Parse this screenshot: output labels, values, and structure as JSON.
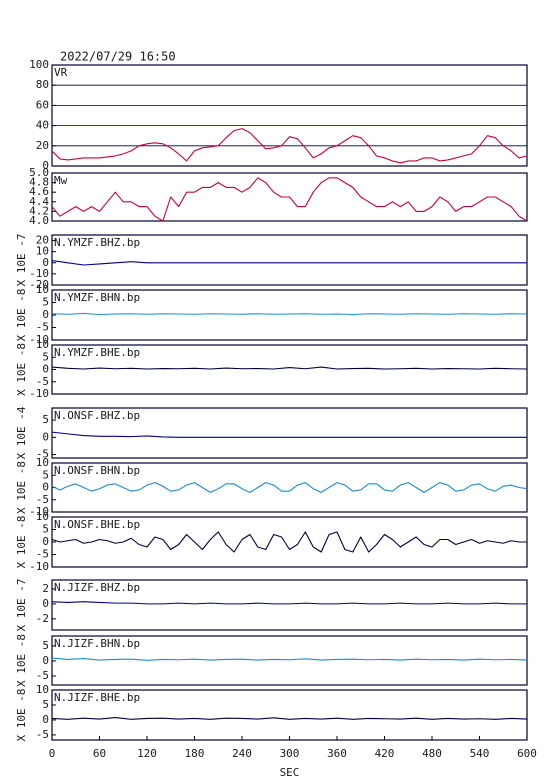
{
  "chart_data": [
    {
      "type": "line",
      "title": "2022/07/29 16:50",
      "label": "VR",
      "color": "#c8003c",
      "grid": true,
      "xlim": [
        0,
        600
      ],
      "ylim": [
        0,
        100
      ],
      "yticks": [
        0,
        20,
        40,
        60,
        80,
        100
      ],
      "x": [
        0,
        10,
        20,
        30,
        40,
        50,
        60,
        70,
        80,
        90,
        100,
        110,
        120,
        130,
        140,
        150,
        160,
        170,
        180,
        190,
        200,
        210,
        220,
        230,
        240,
        250,
        260,
        270,
        280,
        290,
        300,
        310,
        320,
        330,
        340,
        350,
        360,
        370,
        380,
        390,
        400,
        410,
        420,
        430,
        440,
        450,
        460,
        470,
        480,
        490,
        500,
        510,
        520,
        530,
        540,
        550,
        560,
        570,
        580,
        590,
        600
      ],
      "values": [
        15,
        7,
        6,
        7,
        8,
        8,
        8,
        9,
        10,
        12,
        15,
        20,
        22,
        23,
        22,
        18,
        12,
        5,
        15,
        18,
        19,
        20,
        28,
        35,
        37,
        33,
        25,
        17,
        18,
        20,
        29,
        27,
        18,
        8,
        12,
        18,
        20,
        25,
        30,
        28,
        20,
        10,
        8,
        5,
        3,
        5,
        5,
        8,
        8,
        5,
        6,
        8,
        10,
        12,
        20,
        30,
        28,
        20,
        15,
        8,
        10
      ]
    },
    {
      "type": "line",
      "label": "Mw",
      "color": "#c8003c",
      "grid": false,
      "xlim": [
        0,
        600
      ],
      "ylim": [
        4,
        5
      ],
      "yticks": [
        {
          "value": 4,
          "label": "4.0"
        },
        4.2,
        4.4,
        4.6,
        4.8,
        {
          "value": 5,
          "label": "5.0"
        }
      ],
      "x": [
        0,
        10,
        20,
        30,
        40,
        50,
        60,
        70,
        80,
        90,
        100,
        110,
        120,
        130,
        140,
        150,
        160,
        170,
        180,
        190,
        200,
        210,
        220,
        230,
        240,
        250,
        260,
        270,
        280,
        290,
        300,
        310,
        320,
        330,
        340,
        350,
        360,
        370,
        380,
        390,
        400,
        410,
        420,
        430,
        440,
        450,
        460,
        470,
        480,
        490,
        500,
        510,
        520,
        530,
        540,
        550,
        560,
        570,
        580,
        590,
        600
      ],
      "values": [
        4.3,
        4.1,
        4.2,
        4.3,
        4.2,
        4.3,
        4.2,
        4.4,
        4.6,
        4.4,
        4.4,
        4.3,
        4.3,
        4.1,
        4.0,
        4.5,
        4.3,
        4.6,
        4.6,
        4.7,
        4.7,
        4.8,
        4.7,
        4.7,
        4.6,
        4.7,
        4.9,
        4.8,
        4.6,
        4.5,
        4.5,
        4.3,
        4.3,
        4.6,
        4.8,
        4.9,
        4.9,
        4.8,
        4.7,
        4.5,
        4.4,
        4.3,
        4.3,
        4.4,
        4.3,
        4.4,
        4.2,
        4.2,
        4.3,
        4.5,
        4.4,
        4.2,
        4.3,
        4.3,
        4.4,
        4.5,
        4.5,
        4.4,
        4.3,
        4.1,
        4.0
      ]
    },
    {
      "type": "line",
      "label": "N.YMZF.BHZ.bp",
      "ylabel": "X 10E -7",
      "color": "#00008b",
      "xlim": [
        0,
        600
      ],
      "ylim": [
        -20,
        25
      ],
      "yticks": [
        -20,
        -10,
        0,
        10,
        20
      ],
      "x": [
        0,
        20,
        40,
        60,
        80,
        100,
        120,
        140,
        160,
        180,
        200,
        220,
        240,
        260,
        280,
        300,
        320,
        340,
        360,
        380,
        400,
        420,
        440,
        460,
        480,
        500,
        520,
        540,
        560,
        580,
        600
      ],
      "values": [
        2,
        0,
        -2,
        -1,
        0,
        1,
        0,
        0,
        0,
        0,
        0,
        0,
        0,
        0,
        0,
        0,
        0,
        0,
        0,
        0,
        0,
        0,
        0,
        0,
        0,
        0,
        0,
        0,
        0,
        0,
        0
      ]
    },
    {
      "type": "line",
      "label": "N.YMZF.BHN.bp",
      "ylabel": "X 10E -8",
      "color": "#1e8cd2",
      "xlim": [
        0,
        600
      ],
      "ylim": [
        -10,
        10
      ],
      "yticks": [
        -10,
        -5,
        0,
        5,
        10
      ],
      "x": [
        0,
        20,
        40,
        60,
        80,
        100,
        120,
        140,
        160,
        180,
        200,
        220,
        240,
        260,
        280,
        300,
        320,
        340,
        360,
        380,
        400,
        420,
        440,
        460,
        480,
        500,
        520,
        540,
        560,
        580,
        600
      ],
      "values": [
        0.5,
        0.3,
        0.6,
        0.2,
        0.4,
        0.5,
        0.3,
        0.5,
        0.4,
        0.3,
        0.5,
        0.4,
        0.3,
        0.5,
        0.3,
        0.4,
        0.5,
        0.3,
        0.4,
        0.2,
        0.5,
        0.4,
        0.3,
        0.5,
        0.4,
        0.3,
        0.5,
        0.4,
        0.3,
        0.5,
        0.4
      ]
    },
    {
      "type": "line",
      "label": "N.YMZF.BHE.bp",
      "ylabel": "X 10E -8",
      "color": "#000040",
      "xlim": [
        0,
        600
      ],
      "ylim": [
        -10,
        10
      ],
      "yticks": [
        -10,
        -5,
        0,
        5,
        10
      ],
      "x": [
        0,
        20,
        40,
        60,
        80,
        100,
        120,
        140,
        160,
        180,
        200,
        220,
        240,
        260,
        280,
        300,
        320,
        340,
        360,
        380,
        400,
        420,
        440,
        460,
        480,
        500,
        520,
        540,
        560,
        580,
        600
      ],
      "values": [
        1,
        0.5,
        0.2,
        0.6,
        0.3,
        0.5,
        0.2,
        0.4,
        0.3,
        0.5,
        0.2,
        0.6,
        0.3,
        0.4,
        0.2,
        0.8,
        0.3,
        1,
        0.2,
        0.4,
        0.5,
        0.2,
        0.3,
        0.5,
        0.2,
        0.4,
        0.3,
        0.2,
        0.5,
        0.3,
        0.2
      ]
    },
    {
      "type": "line",
      "label": "N.ONSF.BHZ.bp",
      "ylabel": "X 10E -4",
      "color": "#00008b",
      "xlim": [
        0,
        600
      ],
      "ylim": [
        -6,
        8.5
      ],
      "yticks": [
        -5,
        0,
        5
      ],
      "x": [
        0,
        20,
        40,
        60,
        80,
        100,
        120,
        140,
        160,
        180,
        200,
        220,
        240,
        260,
        280,
        300,
        320,
        340,
        360,
        380,
        400,
        420,
        440,
        460,
        480,
        500,
        520,
        540,
        560,
        580,
        600
      ],
      "values": [
        1.5,
        1,
        0.5,
        0.3,
        0.3,
        0.2,
        0.4,
        0.1,
        0,
        0,
        0,
        0,
        0,
        0,
        0,
        0,
        0,
        0,
        0,
        0,
        0,
        0,
        0,
        0,
        0,
        0,
        0,
        0,
        0,
        0,
        0
      ]
    },
    {
      "type": "line",
      "label": "N.ONSF.BHN.bp",
      "ylabel": "X 10E -8",
      "color": "#1e8cd2",
      "xlim": [
        0,
        600
      ],
      "ylim": [
        -10,
        10
      ],
      "yticks": [
        -10,
        -5,
        0,
        5,
        10
      ],
      "x": [
        0,
        10,
        20,
        30,
        40,
        50,
        60,
        70,
        80,
        90,
        100,
        110,
        120,
        130,
        140,
        150,
        160,
        170,
        180,
        190,
        200,
        210,
        220,
        230,
        240,
        250,
        260,
        270,
        280,
        290,
        300,
        310,
        320,
        330,
        340,
        350,
        360,
        370,
        380,
        390,
        400,
        410,
        420,
        430,
        440,
        450,
        460,
        470,
        480,
        490,
        500,
        510,
        520,
        530,
        540,
        550,
        560,
        570,
        580,
        590,
        600
      ],
      "values": [
        0.5,
        -1,
        0.5,
        1.5,
        0,
        -1.5,
        -0.5,
        1,
        1.5,
        0,
        -1.5,
        -1,
        1,
        2,
        0.5,
        -1.5,
        -1,
        1,
        2,
        0,
        -2,
        -0.5,
        1.5,
        1.5,
        -0.5,
        -2,
        0,
        2,
        1,
        -1.5,
        -1.5,
        1,
        2,
        -0.5,
        -2,
        0,
        2,
        1,
        -1.5,
        -1,
        1.5,
        1.5,
        -1,
        -1.5,
        1,
        2,
        0,
        -2,
        0,
        2,
        1,
        -1.5,
        -1,
        1,
        1.5,
        -0.5,
        -1.5,
        0.5,
        1,
        0,
        -0.5
      ]
    },
    {
      "type": "line",
      "label": "N.ONSF.BHE.bp",
      "ylabel": "X 10E -8",
      "color": "#000040",
      "xlim": [
        0,
        600
      ],
      "ylim": [
        -10,
        10
      ],
      "yticks": [
        -10,
        -5,
        0,
        5,
        10
      ],
      "x": [
        0,
        10,
        20,
        30,
        40,
        50,
        60,
        70,
        80,
        90,
        100,
        110,
        120,
        130,
        140,
        150,
        160,
        170,
        180,
        190,
        200,
        210,
        220,
        230,
        240,
        250,
        260,
        270,
        280,
        290,
        300,
        310,
        320,
        330,
        340,
        350,
        360,
        370,
        380,
        390,
        400,
        410,
        420,
        430,
        440,
        450,
        460,
        470,
        480,
        490,
        500,
        510,
        520,
        530,
        540,
        550,
        560,
        570,
        580,
        590,
        600
      ],
      "values": [
        1,
        0,
        0.5,
        1,
        -0.5,
        0,
        1,
        0.5,
        -0.5,
        0,
        1.5,
        -1,
        -2,
        2,
        1,
        -3,
        -1,
        3,
        0,
        -3,
        1,
        4,
        -1,
        -4,
        1,
        3,
        -2,
        -3,
        3,
        2,
        -3,
        -1,
        4,
        -2,
        -4,
        3,
        4,
        -3,
        -4,
        2,
        -4,
        -1,
        3,
        1,
        -2,
        0,
        2,
        -1,
        -2,
        1,
        1,
        -1,
        0,
        1,
        -0.5,
        0.5,
        0,
        -0.5,
        0.5,
        0,
        0
      ]
    },
    {
      "type": "line",
      "label": "N.JIZF.BHZ.bp",
      "ylabel": "X 10E -7",
      "color": "#00008b",
      "xlim": [
        0,
        600
      ],
      "ylim": [
        -3.5,
        3.2
      ],
      "yticks": [
        -2,
        0,
        2
      ],
      "x": [
        0,
        20,
        40,
        60,
        80,
        100,
        120,
        140,
        160,
        180,
        200,
        220,
        240,
        260,
        280,
        300,
        320,
        340,
        360,
        380,
        400,
        420,
        440,
        460,
        480,
        500,
        520,
        540,
        560,
        580,
        600
      ],
      "values": [
        0.3,
        0.2,
        0.3,
        0.2,
        0.1,
        0.1,
        0,
        0,
        0.1,
        0,
        0.1,
        0,
        0,
        0.1,
        0,
        0,
        0.1,
        0,
        0,
        0.1,
        0,
        0,
        0.1,
        0,
        0,
        0.1,
        0,
        0,
        0.1,
        0,
        0
      ]
    },
    {
      "type": "line",
      "label": "N.JIZF.BHN.bp",
      "ylabel": "X 10E -8",
      "color": "#1e8cd2",
      "xlim": [
        0,
        600
      ],
      "ylim": [
        -8,
        8.3
      ],
      "yticks": [
        -5,
        0,
        5
      ],
      "x": [
        0,
        20,
        40,
        60,
        80,
        100,
        120,
        140,
        160,
        180,
        200,
        220,
        240,
        260,
        280,
        300,
        320,
        340,
        360,
        380,
        400,
        420,
        440,
        460,
        480,
        500,
        520,
        540,
        560,
        580,
        600
      ],
      "values": [
        1,
        0.5,
        0.8,
        0.3,
        0.5,
        0.6,
        0.2,
        0.5,
        0.4,
        0.6,
        0.3,
        0.5,
        0.6,
        0.3,
        0.5,
        0.4,
        0.7,
        0.3,
        0.5,
        0.6,
        0.4,
        0.5,
        0.3,
        0.6,
        0.4,
        0.5,
        0.3,
        0.6,
        0.4,
        0.5,
        0.3
      ]
    },
    {
      "type": "line",
      "label": "N.JIZF.BHE.bp",
      "ylabel": "X 10E -8",
      "color": "#000040",
      "xlim": [
        0,
        600
      ],
      "ylim": [
        -6.7,
        10
      ],
      "yticks": [
        -5,
        0,
        5,
        10
      ],
      "xticks": [
        0,
        60,
        120,
        180,
        240,
        300,
        360,
        420,
        480,
        540,
        600
      ],
      "xlabel": "SEC",
      "x": [
        0,
        20,
        40,
        60,
        80,
        100,
        120,
        140,
        160,
        180,
        200,
        220,
        240,
        260,
        280,
        300,
        320,
        340,
        360,
        380,
        400,
        420,
        440,
        460,
        480,
        500,
        520,
        540,
        560,
        580,
        600
      ],
      "values": [
        0.5,
        0.2,
        0.6,
        0.3,
        0.8,
        0.2,
        0.5,
        0.6,
        0.3,
        0.5,
        0.2,
        0.6,
        0.5,
        0.3,
        0.7,
        0.2,
        0.5,
        0.3,
        0.6,
        0.2,
        0.5,
        0.4,
        0.3,
        0.6,
        0.2,
        0.5,
        0.3,
        0.4,
        0.2,
        0.5,
        0.3
      ]
    }
  ]
}
